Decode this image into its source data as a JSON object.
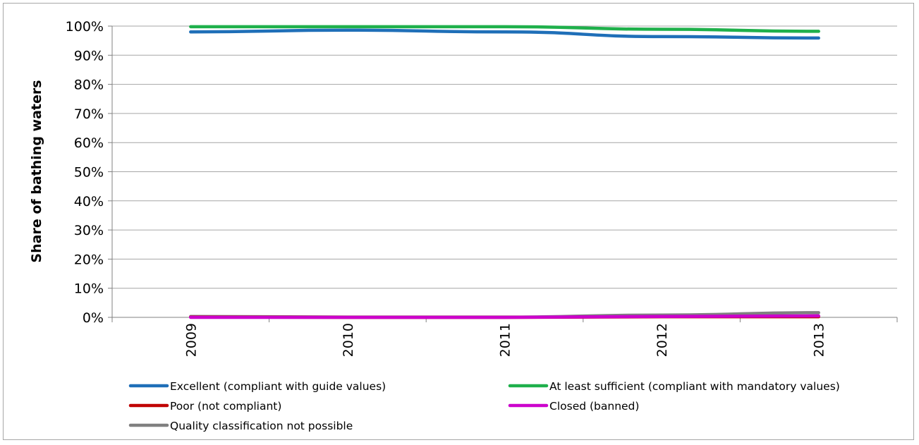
{
  "chart_data": {
    "type": "line",
    "title": "",
    "xlabel": "",
    "ylabel": "Share of bathing waters",
    "x": [
      "2009",
      "2010",
      "2011",
      "2012",
      "2013"
    ],
    "ylim": [
      0,
      100
    ],
    "yticks": [
      "0%",
      "10%",
      "20%",
      "30%",
      "40%",
      "50%",
      "60%",
      "70%",
      "80%",
      "90%",
      "100%"
    ],
    "grid": "horizontal",
    "legend_position": "bottom",
    "series": [
      {
        "name": "Excellent (compliant with guide values)",
        "color": "#1f6fb8",
        "values": [
          98.0,
          98.6,
          98.0,
          96.4,
          95.9
        ]
      },
      {
        "name": "At least sufficient (compliant with mandatory values)",
        "color": "#1fb04b",
        "values": [
          99.8,
          99.8,
          99.8,
          98.9,
          98.2
        ]
      },
      {
        "name": "Poor (not compliant)",
        "color": "#c00000",
        "values": [
          0.1,
          0.0,
          0.0,
          0.2,
          0.2
        ]
      },
      {
        "name": "Closed (banned)",
        "color": "#cc00cc",
        "values": [
          0.0,
          0.0,
          0.0,
          0.3,
          0.5
        ]
      },
      {
        "name": "Quality classification not possible",
        "color": "#808080",
        "values": [
          0.3,
          0.1,
          0.1,
          0.8,
          1.6
        ]
      }
    ]
  }
}
